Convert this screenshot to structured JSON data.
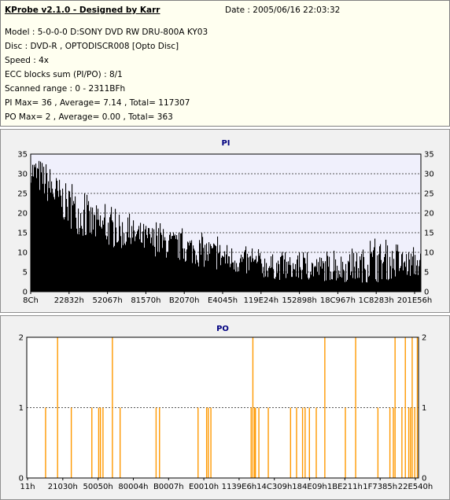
{
  "info": {
    "title": "KProbe v2.1.0 - Designed by Karr",
    "date": "Date : 2005/06/16 22:03:32",
    "lines": [
      "Model : 5-0-0-0 D:SONY    DVD RW DRU-800A  KY03",
      "Disc : DVD-R , OPTODISCR008 [Opto Disc]",
      "Speed : 4x",
      "ECC blocks sum (PI/PO) : 8/1",
      "Scanned range : 0 - 2311BFh",
      "PI Max= 36 , Average= 7.14 , Total= 117307",
      "PO Max= 2 , Average= 0.00 , Total= 363"
    ]
  },
  "colors": {
    "pi": "#000000",
    "po": "#ff9900",
    "plot_bg": "#f0f0fc",
    "grid": "#000000"
  },
  "chart_data": [
    {
      "type": "bar",
      "title": "PI",
      "ylim": [
        0,
        35
      ],
      "y_ticks": [
        0,
        5,
        10,
        15,
        20,
        25,
        30,
        35
      ],
      "x_tick_labels": [
        "8Ch",
        "22832h",
        "52067h",
        "81570h",
        "B2070h",
        "E4045h",
        "119E24h",
        "152898h",
        "18C967h",
        "1C8283h",
        "201E56h"
      ],
      "x_range": [
        0,
        2298
      ],
      "profile_x": [
        0,
        50,
        100,
        150,
        250,
        350,
        500,
        700,
        900,
        1100,
        1300,
        1500,
        1700,
        1900,
        2050,
        2150,
        2298
      ],
      "profile_mean": [
        30,
        28,
        26,
        23,
        19,
        16,
        14,
        12,
        10,
        8,
        6,
        5,
        5,
        5,
        6,
        6,
        6
      ],
      "profile_peak": [
        35,
        35,
        34,
        31,
        27,
        24,
        21,
        18,
        16,
        14,
        11,
        10,
        10,
        11,
        14,
        12,
        11
      ],
      "grid": true
    },
    {
      "type": "bar",
      "title": "PO",
      "ylim": [
        0,
        2
      ],
      "y_ticks": [
        0,
        1,
        2
      ],
      "x_tick_labels": [
        "11h",
        "21030h",
        "50050h",
        "80004h",
        "B0007h",
        "E0010h",
        "1139E6h",
        "14C309h",
        "184E09h",
        "1BE211h",
        "1F7385h",
        "22E540h"
      ],
      "x_range": [
        0,
        2287
      ],
      "spikes_2": [
        180,
        500,
        1320,
        1740,
        1920,
        2150,
        2210,
        2250,
        2280
      ],
      "spikes_1": [
        110,
        260,
        380,
        420,
        430,
        445,
        545,
        755,
        775,
        1000,
        1050,
        1060,
        1075,
        1310,
        1330,
        1335,
        1355,
        1410,
        1540,
        1575,
        1610,
        1625,
        1650,
        1690,
        1860,
        2050,
        2120,
        2140,
        2190,
        2230,
        2240,
        2265
      ],
      "grid": true
    }
  ]
}
